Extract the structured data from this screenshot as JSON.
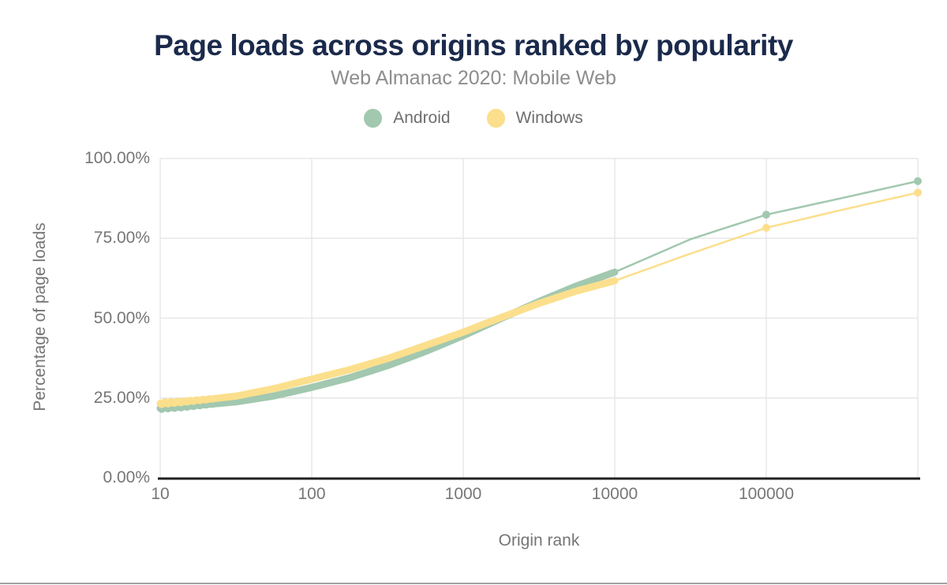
{
  "chart_data": {
    "type": "line",
    "title": "Page loads across origins ranked by popularity",
    "subtitle": "Web Almanac 2020: Mobile Web",
    "xlabel": "Origin rank",
    "ylabel": "Percentage of page loads",
    "x_scale": "log",
    "xlim": [
      10,
      1000000
    ],
    "ylim": [
      0,
      100
    ],
    "grid": true,
    "legend_position": "top",
    "x_ticks": {
      "values": [
        10,
        100,
        1000,
        10000,
        100000
      ],
      "labels": [
        "10",
        "100",
        "1000",
        "10000",
        "100000"
      ]
    },
    "x_grid_extra": [
      1000000
    ],
    "y_ticks": {
      "values": [
        0,
        25,
        50,
        75,
        100
      ],
      "labels": [
        "0.00%",
        "25.00%",
        "50.00%",
        "75.00%",
        "100.00%"
      ]
    },
    "band_end_x": 10000,
    "marker_x": [
      100000,
      1000000
    ],
    "series": [
      {
        "name": "Android",
        "color": "#a2c8b0",
        "x": [
          10,
          14,
          20,
          32,
          56,
          100,
          180,
          320,
          560,
          1000,
          1800,
          3200,
          5600,
          10000,
          31600,
          100000,
          316000,
          1000000
        ],
        "y": [
          21.8,
          22.2,
          22.9,
          23.8,
          25.6,
          28.3,
          31.4,
          35.2,
          39.5,
          44.5,
          50.0,
          55.3,
          60.1,
          64.4,
          74.7,
          82.4,
          87.6,
          92.9
        ]
      },
      {
        "name": "Windows",
        "color": "#fbdf8c",
        "x": [
          10,
          14,
          20,
          32,
          56,
          100,
          180,
          320,
          560,
          1000,
          1800,
          3200,
          5600,
          10000,
          31600,
          100000,
          316000,
          1000000
        ],
        "y": [
          23.3,
          23.8,
          24.5,
          25.6,
          27.9,
          30.9,
          33.9,
          37.4,
          41.4,
          45.6,
          50.3,
          54.7,
          58.5,
          61.7,
          70.2,
          78.3,
          83.9,
          89.3
        ]
      }
    ],
    "colors": {
      "title": "#1b2a4b",
      "subtitle": "#8d8d8d",
      "axis_text": "#757575",
      "gridline": "#e7e7e7",
      "axis_line": "#202020",
      "bottom_rule": "#a1a1a1"
    }
  }
}
